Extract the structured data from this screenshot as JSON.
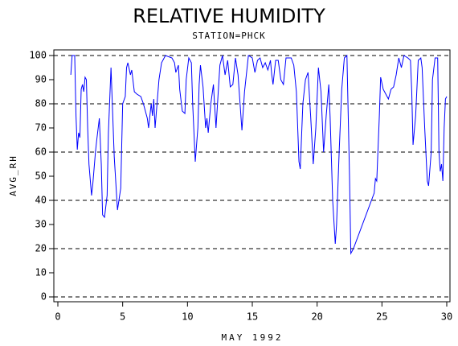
{
  "chart_data": {
    "type": "line",
    "title": "RELATIVE HUMIDITY",
    "subtitle": "STATION=PHCK",
    "x_label": "MAY 1992",
    "y_label": "AVG_RH",
    "xlim": [
      0,
      30
    ],
    "xticks": [
      0,
      5,
      10,
      15,
      20,
      25,
      30
    ],
    "ylim": [
      0,
      100
    ],
    "yticks": [
      0,
      10,
      20,
      30,
      40,
      50,
      60,
      70,
      80,
      90,
      100
    ],
    "reference_lines": [
      0,
      20,
      40,
      60,
      80,
      100
    ],
    "series": [
      {
        "color": "#0000ff",
        "x": [
          1.0,
          1.1,
          1.3,
          1.4,
          1.5,
          1.6,
          1.7,
          1.8,
          1.9,
          2.0,
          2.1,
          2.2,
          2.3,
          2.4,
          2.6,
          2.7,
          2.9,
          3.0,
          3.2,
          3.35,
          3.45,
          3.6,
          3.8,
          3.9,
          4.1,
          4.35,
          4.6,
          4.85,
          5.0,
          5.2,
          5.3,
          5.4,
          5.6,
          5.7,
          5.9,
          6.1,
          6.4,
          6.6,
          6.9,
          7.0,
          7.2,
          7.3,
          7.4,
          7.5,
          7.8,
          8.0,
          8.3,
          8.8,
          9.0,
          9.1,
          9.3,
          9.4,
          9.6,
          9.8,
          9.9,
          10.1,
          10.3,
          10.4,
          10.6,
          10.8,
          10.9,
          11.0,
          11.2,
          11.4,
          11.5,
          11.6,
          11.8,
          12.0,
          12.2,
          12.5,
          12.7,
          12.9,
          13.1,
          13.3,
          13.5,
          13.7,
          13.9,
          14.2,
          14.4,
          14.7,
          15.0,
          15.2,
          15.4,
          15.6,
          15.8,
          16.0,
          16.2,
          16.4,
          16.5,
          16.6,
          16.8,
          17.0,
          17.2,
          17.4,
          17.6,
          18.0,
          18.2,
          18.4,
          18.6,
          18.7,
          18.9,
          19.1,
          19.3,
          19.5,
          19.7,
          19.9,
          20.1,
          20.3,
          20.5,
          20.7,
          20.9,
          21.0,
          21.2,
          21.4,
          21.5,
          21.7,
          21.9,
          22.1,
          22.3,
          22.5,
          22.6,
          22.8,
          24.4,
          24.5,
          24.6,
          24.8,
          24.9,
          25.1,
          25.3,
          25.5,
          25.7,
          25.9,
          26.1,
          26.3,
          26.5,
          26.7,
          27.0,
          27.2,
          27.3,
          27.4,
          27.6,
          27.8,
          28.0,
          28.1,
          28.3,
          28.5,
          28.6,
          28.8,
          28.9,
          29.1,
          29.3,
          29.4,
          29.5,
          29.6,
          29.7,
          29.8,
          29.9,
          30.0
        ],
        "values": [
          92,
          100,
          100,
          75,
          61,
          68,
          66,
          86,
          88,
          85,
          91,
          90,
          70,
          55,
          42,
          47,
          60,
          65,
          74,
          55,
          34,
          33,
          42,
          68,
          95,
          58,
          36,
          45,
          80,
          83,
          95,
          97,
          92,
          94,
          85,
          84,
          83,
          80,
          74,
          70,
          80,
          75,
          82,
          70,
          90,
          97,
          100,
          99,
          97,
          93,
          96,
          86,
          77,
          76,
          90,
          99,
          97,
          80,
          56,
          70,
          88,
          96,
          87,
          70,
          74,
          68,
          80,
          88,
          70,
          96,
          100,
          92,
          98,
          87,
          88,
          99,
          92,
          69,
          85,
          100,
          99,
          93,
          98,
          99,
          95,
          97,
          94,
          98,
          92,
          88,
          98,
          98,
          90,
          88,
          99,
          99,
          96,
          85,
          56,
          53,
          80,
          90,
          93,
          75,
          55,
          70,
          95,
          85,
          60,
          75,
          88,
          75,
          40,
          22,
          30,
          60,
          86,
          99,
          100,
          50,
          18,
          20,
          43,
          49,
          48,
          75,
          91,
          86,
          84,
          82,
          86,
          87,
          92,
          99,
          95,
          100,
          99,
          98,
          85,
          63,
          75,
          98,
          99,
          95,
          70,
          48,
          46,
          60,
          90,
          99,
          99,
          60,
          52,
          55,
          48,
          70,
          82,
          83
        ]
      }
    ]
  }
}
